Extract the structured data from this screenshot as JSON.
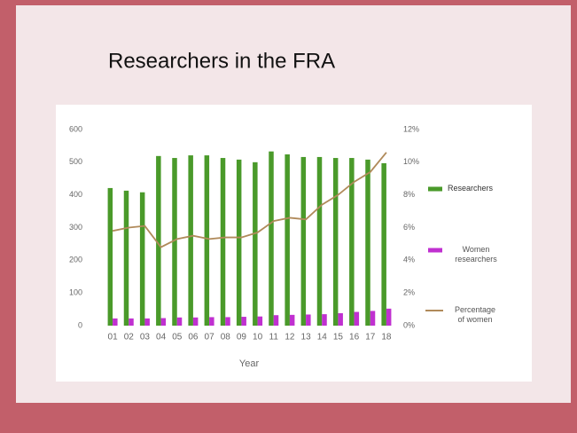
{
  "chart_data": {
    "type": "bar",
    "title": "Researchers in the FRA",
    "xlabel": "Year",
    "categories": [
      "01",
      "02",
      "03",
      "04",
      "05",
      "06",
      "07",
      "08",
      "09",
      "10",
      "11",
      "12",
      "13",
      "14",
      "15",
      "16",
      "17",
      "18"
    ],
    "series": [
      {
        "name": "Researchers",
        "color": "#4a9a2a",
        "values": [
          421,
          413,
          408,
          519,
          513,
          521,
          521,
          513,
          508,
          500,
          533,
          524,
          516,
          516,
          513,
          513,
          508,
          497
        ]
      },
      {
        "name": "Women researchers",
        "color": "#c030d0",
        "values": [
          22,
          22,
          22,
          23,
          25,
          25,
          26,
          26,
          27,
          28,
          32,
          33,
          34,
          35,
          38,
          42,
          45,
          52
        ]
      },
      {
        "name": "Percentage of women",
        "color": "#b08a5a",
        "type": "line",
        "axis": "y2",
        "values": [
          5.8,
          6.0,
          6.1,
          4.8,
          5.3,
          5.5,
          5.3,
          5.4,
          5.4,
          5.7,
          6.4,
          6.6,
          6.5,
          7.4,
          8.0,
          8.8,
          9.4,
          10.6
        ]
      }
    ],
    "ylim": [
      0,
      600
    ],
    "yticks": [
      0,
      100,
      200,
      300,
      400,
      500,
      600
    ],
    "y2lim": [
      0,
      12
    ],
    "y2ticks": [
      {
        "value": 0,
        "label": "0%"
      },
      {
        "value": 2,
        "label": "2%"
      },
      {
        "value": 4,
        "label": "4%"
      },
      {
        "value": 6,
        "label": "6%"
      },
      {
        "value": 8,
        "label": "8%"
      },
      {
        "value": 10,
        "label": "10%"
      },
      {
        "value": 12,
        "label": "12%"
      }
    ],
    "grid": false,
    "legend": "right"
  }
}
